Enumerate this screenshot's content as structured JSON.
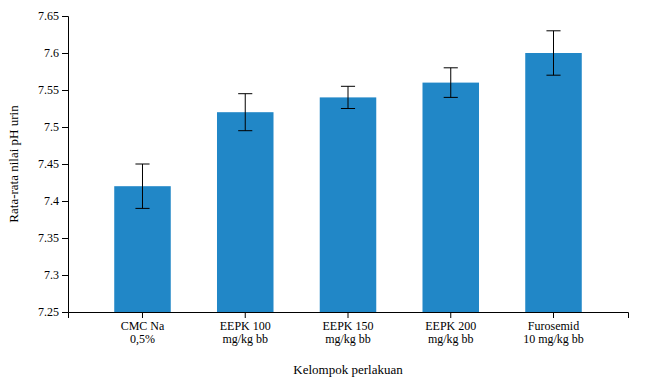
{
  "chart_data": {
    "type": "bar",
    "categories": [
      "CMC Na\n0,5%",
      "EEPK 100\nmg/kg bb",
      "EEPK 150\nmg/kg bb",
      "EEPK 200\nmg/kg bb",
      "Furosemid\n10 mg/kg bb"
    ],
    "values": [
      7.42,
      7.52,
      7.54,
      7.56,
      7.6
    ],
    "errors": [
      0.03,
      0.025,
      0.015,
      0.02,
      0.03
    ],
    "color": "#2187C7",
    "xlabel": "Kelompok perlakuan",
    "ylabel": "Rata-rata nilai pH urin",
    "ylim": [
      7.25,
      7.65
    ],
    "yticks": [
      7.25,
      7.3,
      7.35,
      7.4,
      7.45,
      7.5,
      7.55,
      7.6,
      7.65
    ],
    "grid": false
  }
}
